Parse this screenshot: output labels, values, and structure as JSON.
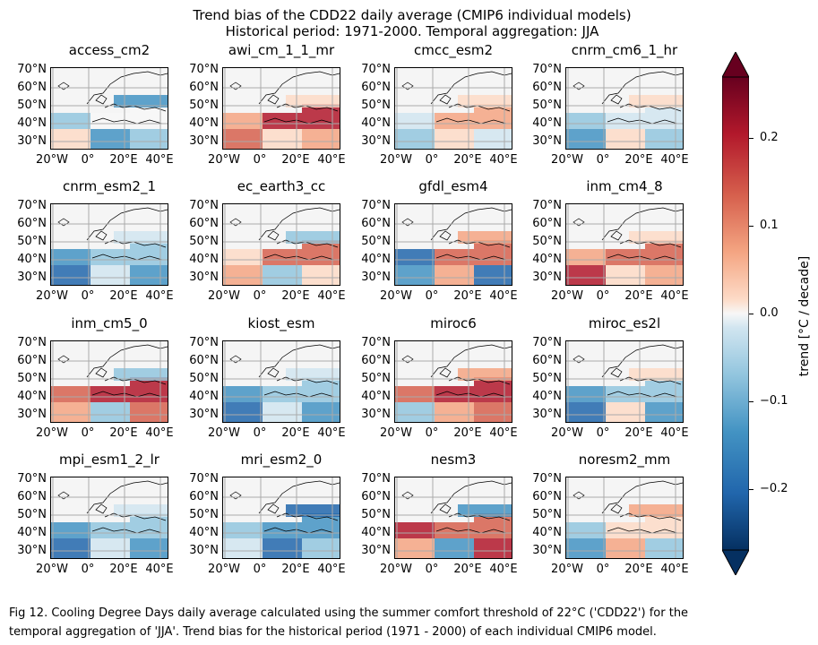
{
  "title_line1": "Trend bias of the CDD22 daily average (CMIP6 individual models)",
  "title_line2": "Historical period: 1971-2000. Temporal aggregation: JJA",
  "caption_line1": "Fig 12. Cooling Degree Days daily average calculated using the summer comfort threshold of 22°C ('CDD22') for the",
  "caption_line2": "temporal aggregation of 'JJA'. Trend bias for the historical period (1971 - 2000) of each individual CMIP6 model.",
  "colors": {
    "cmap": "RdBu_r",
    "negative": "#053061",
    "positive": "#67001f",
    "neutral": "#f7f7f7"
  },
  "chart_data": {
    "type": "heatmap",
    "subplots": [
      {
        "model": "access_cm2",
        "pattern": "mostly blue south, red patches east"
      },
      {
        "model": "awi_cm_1_1_mr",
        "pattern": "strong red east"
      },
      {
        "model": "cmcc_esm2",
        "pattern": "mixed"
      },
      {
        "model": "cnrm_cm6_1_hr",
        "pattern": "mostly blue"
      },
      {
        "model": "cnrm_esm2_1",
        "pattern": "blue"
      },
      {
        "model": "ec_earth3_cc",
        "pattern": "red south"
      },
      {
        "model": "gfdl_esm4",
        "pattern": "blue west, red east"
      },
      {
        "model": "inm_cm4_8",
        "pattern": "red widespread"
      },
      {
        "model": "inm_cm5_0",
        "pattern": "red centre"
      },
      {
        "model": "kiost_esm",
        "pattern": "blue"
      },
      {
        "model": "miroc6",
        "pattern": "red south"
      },
      {
        "model": "miroc_es2l",
        "pattern": "blue"
      },
      {
        "model": "mpi_esm1_2_lr",
        "pattern": "blue"
      },
      {
        "model": "mri_esm2_0",
        "pattern": "blue"
      },
      {
        "model": "nesm3",
        "pattern": "red"
      },
      {
        "model": "noresm2_mm",
        "pattern": "mixed"
      }
    ],
    "xticks": [
      "20°W",
      "0°",
      "20°E",
      "40°E"
    ],
    "yticks": [
      "70°N",
      "60°N",
      "50°N",
      "40°N",
      "30°N"
    ],
    "colorbar": {
      "label": "trend [°C / decade]",
      "range": [
        -0.27,
        0.27
      ],
      "ticks": [
        0.2,
        0.1,
        0.0,
        -0.1,
        -0.2
      ],
      "tick_labels": [
        "0.2",
        "0.1",
        "0.0",
        "−0.1",
        "−0.2"
      ],
      "extend": "both"
    }
  }
}
